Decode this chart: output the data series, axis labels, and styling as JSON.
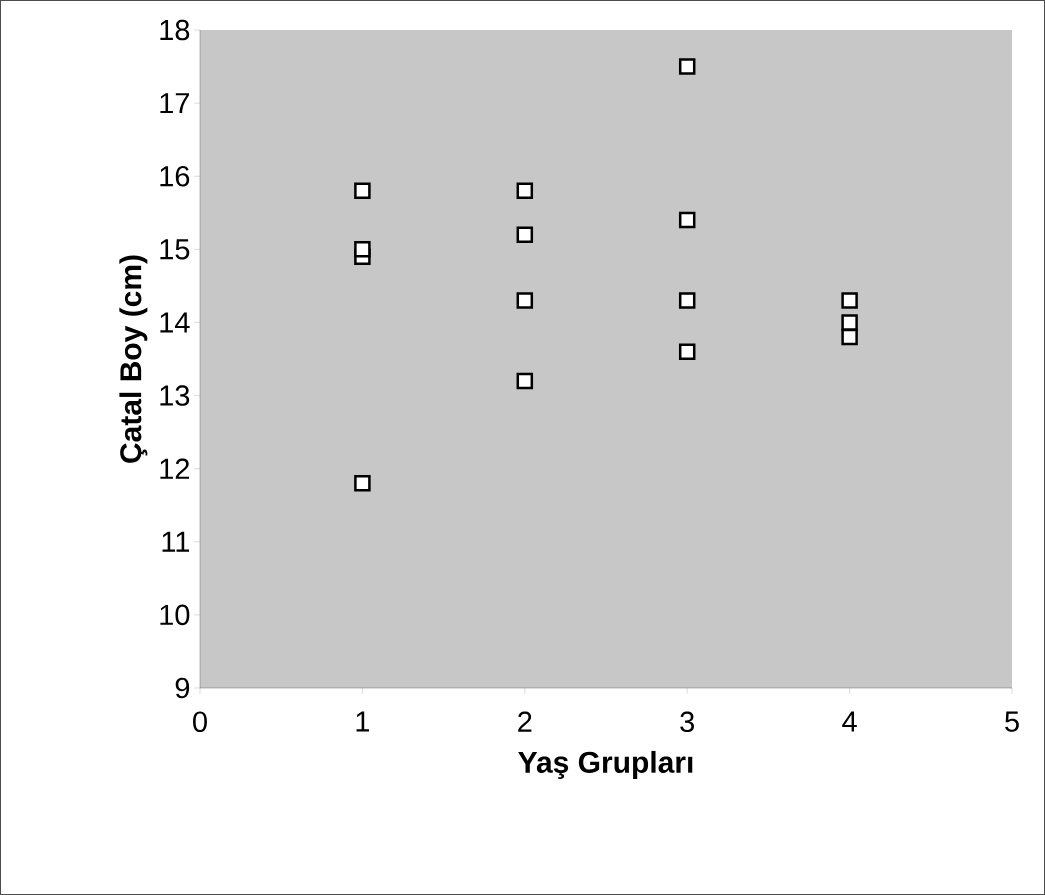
{
  "chart_data": {
    "type": "scatter",
    "xlabel": "Yaş Grupları",
    "ylabel": "Çatal Boy (cm)",
    "x": [
      1,
      1,
      1,
      1,
      2,
      2,
      2,
      2,
      3,
      3,
      3,
      3,
      4,
      4,
      4
    ],
    "values": [
      15.8,
      15.0,
      14.9,
      11.8,
      15.8,
      15.2,
      14.3,
      13.2,
      17.5,
      15.4,
      14.3,
      13.6,
      14.3,
      14.0,
      13.8
    ],
    "color": "#000000",
    "marker": "square",
    "xlim": [
      0,
      5
    ],
    "ylim": [
      9,
      18
    ],
    "xticks": [
      0,
      1,
      2,
      3,
      4,
      5
    ],
    "yticks": [
      9,
      10,
      11,
      12,
      13,
      14,
      15,
      16,
      17,
      18
    ]
  }
}
